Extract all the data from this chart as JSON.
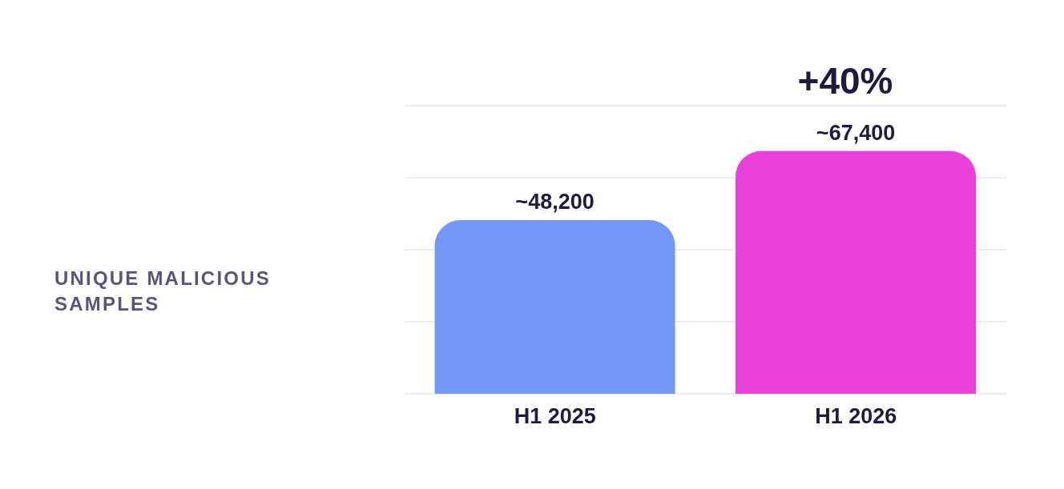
{
  "chart_data": {
    "type": "bar",
    "title": "UNIQUE MALICIOUS SAMPLES",
    "categories": [
      "H1 2025",
      "H1 2026"
    ],
    "values": [
      48200,
      67400
    ],
    "colors": [
      "#7398f8",
      "#e840d8"
    ],
    "value_labels": [
      "~48,200",
      "~67,400"
    ],
    "ylim": [
      0,
      80000
    ],
    "grid": "y",
    "tick_labels": "x",
    "annotations": [
      "+40%"
    ]
  }
}
